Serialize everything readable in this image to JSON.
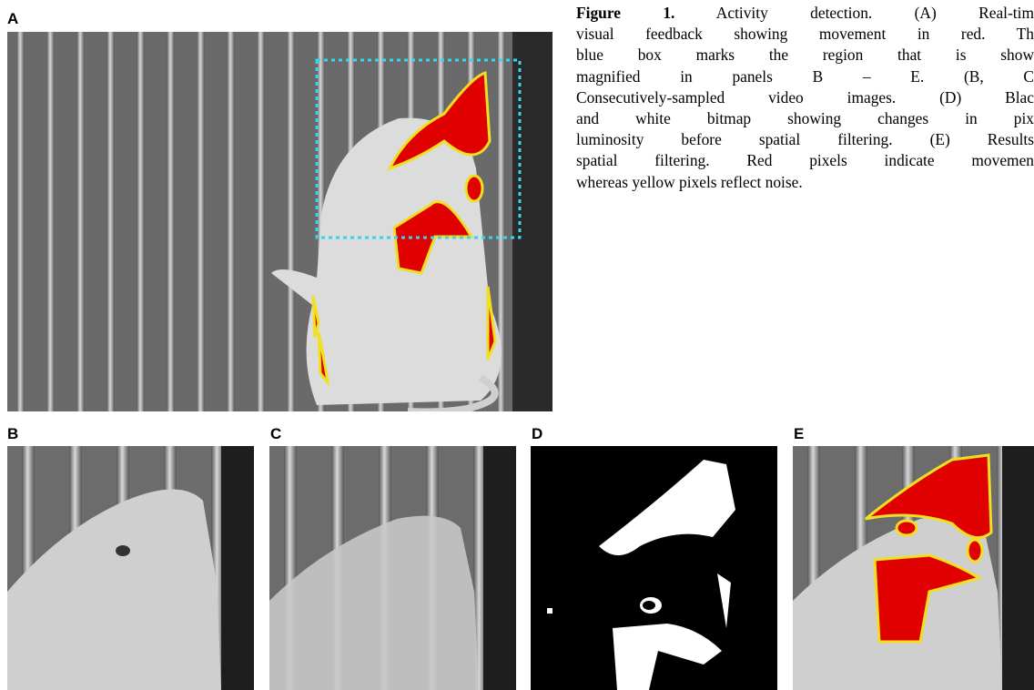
{
  "panels": [
    {
      "label": "A"
    },
    {
      "label": "B"
    },
    {
      "label": "C"
    },
    {
      "label": "D"
    },
    {
      "label": "E"
    }
  ],
  "caption": {
    "label": "Figure 1.",
    "lines": [
      "Activity detection.   (A) Real-tim",
      "visual feedback showing movement in red.  Th",
      "blue box marks the region that is show",
      "magnified in panels B – E.   (B, C",
      "Consecutively-sampled video images. (D) Blac",
      "and white bitmap showing changes in pix",
      "luminosity before spatial filtering.  (E) Results",
      "spatial filtering. Red pixels indicate movemen",
      "whereas yellow pixels reflect noise."
    ]
  }
}
